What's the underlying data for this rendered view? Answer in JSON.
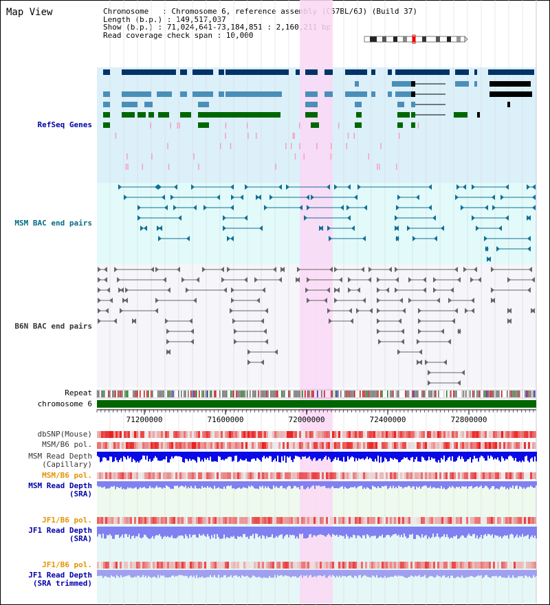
{
  "title": "Map View",
  "info": {
    "chromosome": "Chromosome   : Chromosome 6, reference assembly (C57BL/6J) (Build 37)",
    "length": "Length (b.p.) : 149,517,037",
    "show": "Show (b.p.) : 71,024,641-73,184,851 : 2,160,211 bp",
    "coverage": "Read coverage check span : 10,000"
  },
  "tracks": {
    "refseq": "RefSeq Genes",
    "msm_bac": "MSM BAC end pairs",
    "b6n_bac": "B6N BAC end pairs",
    "repeat": "Repeat",
    "chromosome": "chromosome 6",
    "dbsnp": "dbSNP(Mouse)",
    "msm_b6_pol_1": "MSM/B6 pol.",
    "msm_read_depth_cap_1": "MSM Read Depth",
    "msm_read_depth_cap_2": "(Capillary)",
    "msm_b6_pol_2": "MSM/B6 pol.",
    "msm_read_depth_sra_1": "MSM Read Depth",
    "msm_read_depth_sra_2": "(SRA)",
    "jf1_b6_pol_1": "JF1/B6 pol.",
    "jf1_read_depth_sra_1": "JF1 Read Depth",
    "jf1_read_depth_sra_2": "(SRA)",
    "jf1_b6_pol_2": "JF1/B6 pol.",
    "jf1_read_depth_trim_1": "JF1 Read Depth",
    "jf1_read_depth_trim_2": "(SRA trimmed)"
  },
  "axis": {
    "ticks": [
      "71200000",
      "71600000",
      "72000000",
      "72400000",
      "72800000"
    ]
  },
  "colors": {
    "refseq_bg": "#dcf0fa",
    "msm_bg": "#e2fafa",
    "b6n_bg": "#f5f5fa",
    "highlight": "#fad8f5",
    "gene_dark": "#003366",
    "gene_mid": "#4a8fb8",
    "gene_green": "#006600",
    "chromosome_bar": "#006600",
    "read_depth_blue": "#0a0ae6",
    "read_depth_light": "#8080f0",
    "pol_red": "#e83030"
  }
}
